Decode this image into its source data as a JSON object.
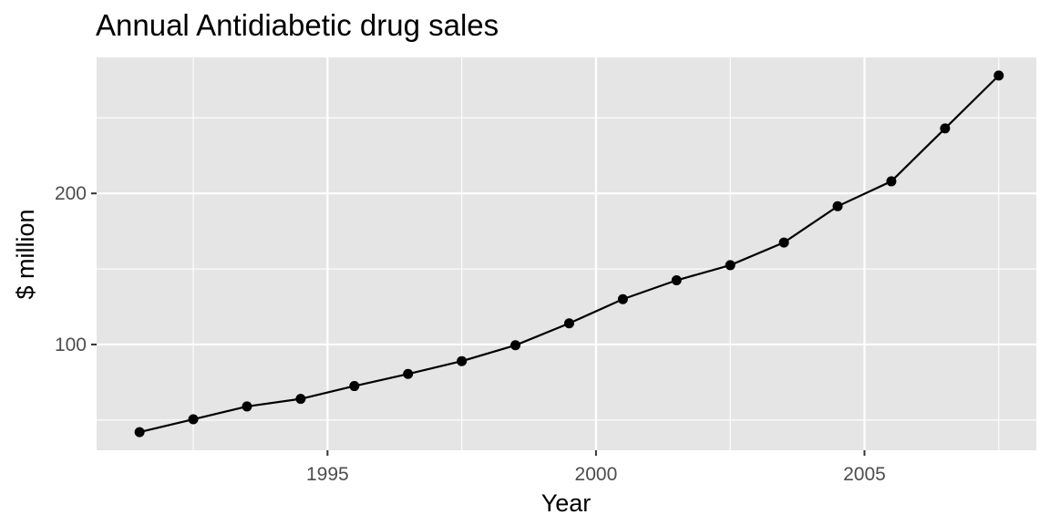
{
  "chart_data": {
    "type": "line",
    "title": "Annual Antidiabetic drug sales",
    "xlabel": "Year",
    "ylabel": "$ million",
    "xlim": [
      1990.7,
      2008.2
    ],
    "ylim": [
      30,
      290
    ],
    "x_ticks": [
      1995,
      2000,
      2005
    ],
    "x_tick_labels": [
      "1995",
      "2000",
      "2005"
    ],
    "y_ticks": [
      100,
      200
    ],
    "y_tick_labels": [
      "100",
      "200"
    ],
    "y_minor_ticks": [
      50,
      150,
      250
    ],
    "grid": true,
    "legend": "none",
    "x": [
      1991.5,
      1992.5,
      1993.5,
      1994.5,
      1995.5,
      1996.5,
      1997.5,
      1998.5,
      1999.5,
      2000.5,
      2001.5,
      2002.5,
      2003.5,
      2004.5,
      2005.5,
      2006.5,
      2007.5
    ],
    "series": [
      {
        "values": [
          42,
          50.5,
          59,
          64,
          72.5,
          80.5,
          89,
          99.5,
          114,
          130,
          142.5,
          152.5,
          167.5,
          191.5,
          208,
          243,
          278
        ]
      }
    ],
    "colors": {
      "line": "#000000",
      "panel": "#e5e5e5",
      "grid": "#ffffff"
    }
  }
}
